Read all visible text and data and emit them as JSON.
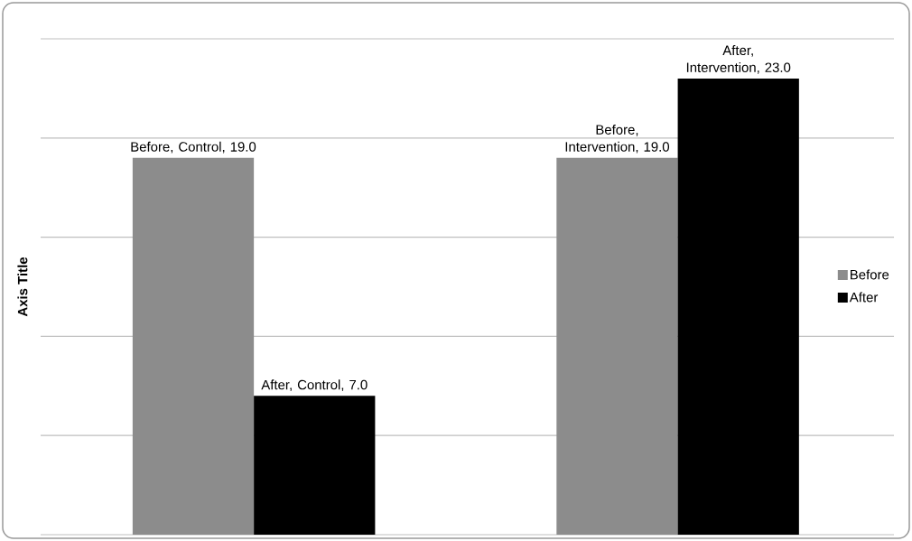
{
  "chart_data": {
    "type": "bar",
    "ylabel": "Axis Title",
    "categories": [
      null,
      null
    ],
    "series": [
      {
        "name": "Before",
        "color": "#8c8c8c",
        "values": [
          19.0,
          19.0
        ],
        "value_labels": [
          "Before, Control, 19.0",
          "Before, Intervention, 19.0"
        ]
      },
      {
        "name": "After",
        "color": "#000000",
        "values": [
          7.0,
          23.0
        ],
        "value_labels": [
          "After, Control, 7.0",
          "After, Intervention, 23.0"
        ]
      }
    ],
    "ylim": [
      0,
      25
    ],
    "yticks": [
      {
        "value": 0,
        "label": null
      },
      {
        "value": 5,
        "label": null
      },
      {
        "value": 10,
        "label": null
      },
      {
        "value": 15,
        "label": null
      },
      {
        "value": 20,
        "label": null
      },
      {
        "value": 25,
        "label": null
      }
    ],
    "tick_labels": false,
    "grid": "y",
    "legend": "right"
  }
}
